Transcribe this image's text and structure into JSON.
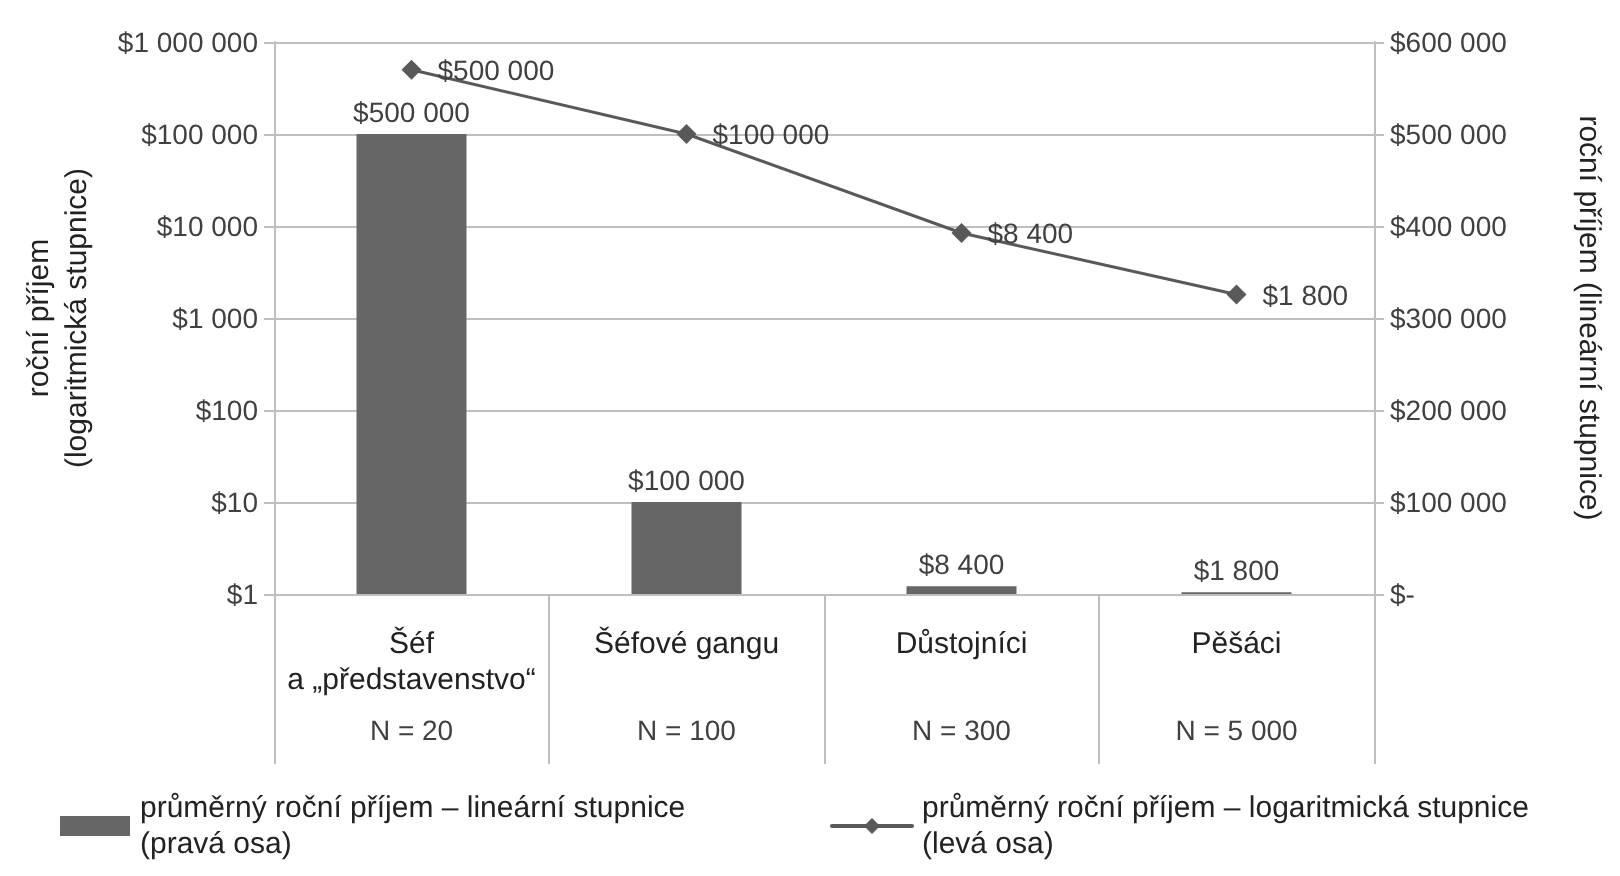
{
  "chart_data": {
    "type": "bar",
    "categories": [
      "Šéf a „představenstvo“",
      "Šéfové gangu",
      "Důstojníci",
      "Pěšáci"
    ],
    "series": [
      {
        "name": "průměrný roční příjem – lineární stupnice (pravá osa)",
        "axis": "y2",
        "color": "#666666",
        "values": [
          500000,
          100000,
          8400,
          1800
        ],
        "value_labels": [
          "$500 000",
          "$100 000",
          "$8 400",
          "$1 800"
        ]
      },
      {
        "name": "průměrný roční příjem – logaritmická stupnice (levá osa)",
        "type": "line",
        "color": "#595959",
        "values": [
          500000,
          100000,
          8400,
          1800
        ],
        "value_labels": [
          "$500 000",
          "$100 000",
          "$8 400",
          "$1 800"
        ]
      }
    ],
    "ylabel": "roční příjem (logaritmická stupnice)",
    "y2label": "roční příjem (lineární stupnice)",
    "ylim": [
      1,
      1000000
    ],
    "yticks": [
      {
        "value": 1,
        "label": "$1"
      },
      {
        "value": 10,
        "label": "$10"
      },
      {
        "value": 100,
        "label": "$100"
      },
      {
        "value": 1000,
        "label": "$1 000"
      },
      {
        "value": 10000,
        "label": "$10 000"
      },
      {
        "value": 100000,
        "label": "$100 000"
      },
      {
        "value": 1000000,
        "label": "$1 000 000"
      }
    ],
    "y2lim": [
      0,
      600000
    ],
    "y2ticks": [
      {
        "value": 0,
        "label": "$-"
      },
      {
        "value": 100000,
        "label": "$100 000"
      },
      {
        "value": 200000,
        "label": "$200 000"
      },
      {
        "value": 300000,
        "label": "$300 000"
      },
      {
        "value": 400000,
        "label": "$400 000"
      },
      {
        "value": 500000,
        "label": "$500 000"
      },
      {
        "value": 600000,
        "label": "$600 000"
      }
    ],
    "log": "y",
    "grid": "y",
    "legend": "bottom",
    "marker": "diamond",
    "annotations": [
      "N = 20",
      "N = 100",
      "N = 300",
      "N = 5 000"
    ]
  }
}
